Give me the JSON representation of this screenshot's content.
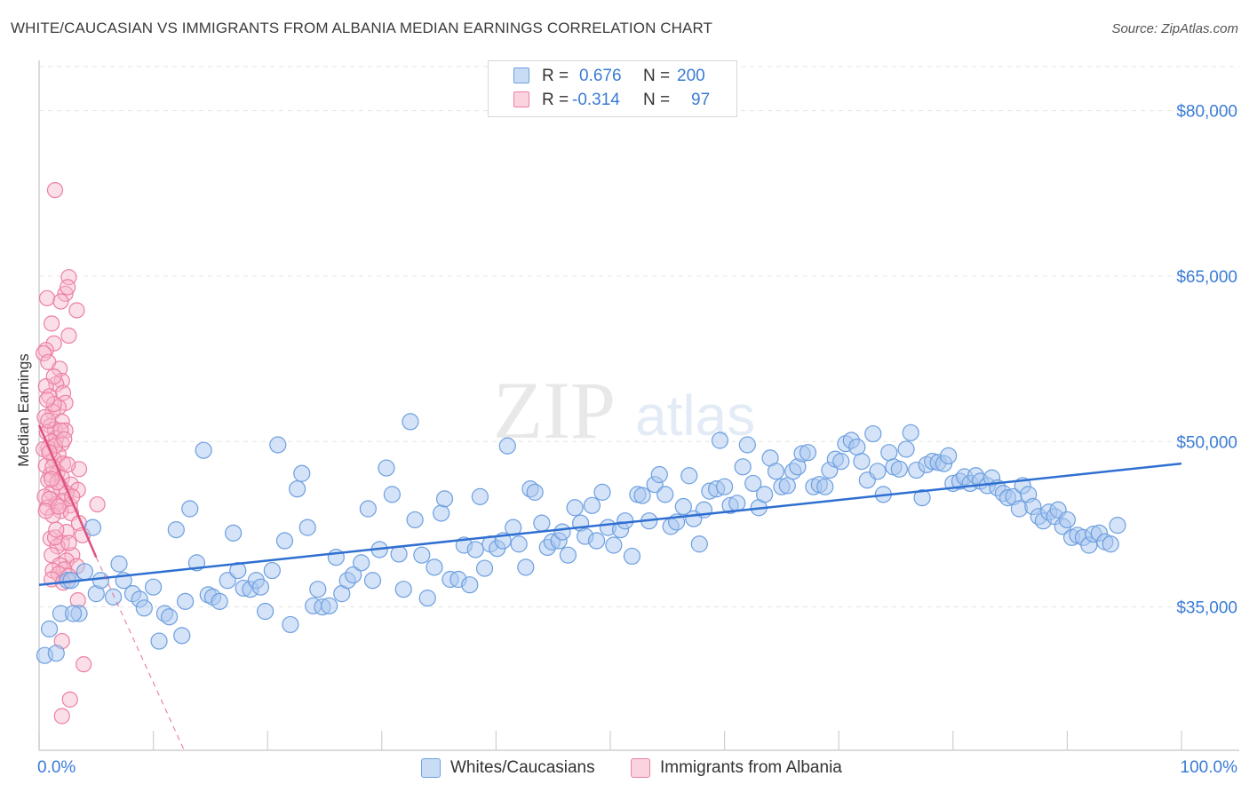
{
  "title": "WHITE/CAUCASIAN VS IMMIGRANTS FROM ALBANIA MEDIAN EARNINGS CORRELATION CHART",
  "source": "Source: ZipAtlas.com",
  "watermark": {
    "zip": "ZIP",
    "atlas": "atlas"
  },
  "legend": {
    "rows": [
      {
        "r_label": "R =",
        "r_value": "0.676",
        "n_label": "N =",
        "n_value": "200",
        "color": "#a9c8f0"
      },
      {
        "r_label": "R =",
        "r_value": "-0.314",
        "n_label": "N =",
        "n_value": "97",
        "color": "#f7b7cb"
      }
    ]
  },
  "bottom_legend": {
    "whites": "Whites/Caucasians",
    "albania": "Immigrants from Albania"
  },
  "colors": {
    "blue_fill": "#a9c8f0",
    "blue_stroke": "#6d9fe0",
    "blue_line": "#2f6fd1",
    "pink_fill": "#f7b7cb",
    "pink_stroke": "#ec7fa2",
    "pink_line": "#e0527f",
    "grid": "#e4e4e4",
    "tick_text": "#3a7bd5"
  },
  "chart_data": {
    "type": "scatter",
    "title": "WHITE/CAUCASIAN VS IMMIGRANTS FROM ALBANIA MEDIAN EARNINGS CORRELATION CHART",
    "xlabel": "",
    "ylabel": "Median Earnings",
    "x_tick_labels": [
      "0.0%",
      "100.0%"
    ],
    "y_ticks": [
      35000,
      50000,
      65000,
      80000
    ],
    "y_tick_labels": [
      "$35,000",
      "$50,000",
      "$65,000",
      "$80,000"
    ],
    "xlim": [
      0,
      100
    ],
    "ylim": [
      22000,
      84000
    ],
    "grid": true,
    "series": [
      {
        "name": "Whites/Caucasians",
        "trend": {
          "x": [
            0,
            100
          ],
          "y": [
            37000,
            48000
          ]
        },
        "points": [
          [
            0.5,
            30600
          ],
          [
            1.5,
            30800
          ],
          [
            0.9,
            33000
          ],
          [
            1.9,
            34400
          ],
          [
            3.5,
            34400
          ],
          [
            3.0,
            34400
          ],
          [
            2.5,
            37400
          ],
          [
            4.0,
            38200
          ],
          [
            4.7,
            42200
          ],
          [
            2.8,
            37400
          ],
          [
            5.0,
            36200
          ],
          [
            5.4,
            37400
          ],
          [
            6.5,
            35900
          ],
          [
            7.0,
            38900
          ],
          [
            7.4,
            37400
          ],
          [
            8.2,
            36200
          ],
          [
            8.8,
            35700
          ],
          [
            9.2,
            34900
          ],
          [
            10.0,
            36800
          ],
          [
            10.5,
            31900
          ],
          [
            11.0,
            34400
          ],
          [
            11.4,
            34100
          ],
          [
            12.0,
            42000
          ],
          [
            12.5,
            32400
          ],
          [
            12.8,
            35500
          ],
          [
            13.2,
            43900
          ],
          [
            13.8,
            39000
          ],
          [
            14.4,
            49200
          ],
          [
            14.8,
            36100
          ],
          [
            15.2,
            35900
          ],
          [
            15.8,
            35500
          ],
          [
            16.5,
            37400
          ],
          [
            17.0,
            41700
          ],
          [
            17.4,
            38300
          ],
          [
            17.9,
            36700
          ],
          [
            18.5,
            36600
          ],
          [
            19.0,
            37400
          ],
          [
            19.4,
            36800
          ],
          [
            19.8,
            34600
          ],
          [
            20.4,
            38300
          ],
          [
            20.9,
            49700
          ],
          [
            21.5,
            41000
          ],
          [
            22.0,
            33400
          ],
          [
            22.6,
            45700
          ],
          [
            23.0,
            47100
          ],
          [
            23.5,
            42200
          ],
          [
            24.0,
            35100
          ],
          [
            24.4,
            36600
          ],
          [
            24.8,
            35000
          ],
          [
            25.4,
            35100
          ],
          [
            26.0,
            39500
          ],
          [
            26.5,
            36200
          ],
          [
            27.0,
            37400
          ],
          [
            27.5,
            37900
          ],
          [
            28.2,
            39000
          ],
          [
            28.8,
            43900
          ],
          [
            29.2,
            37400
          ],
          [
            29.8,
            40200
          ],
          [
            30.4,
            47600
          ],
          [
            30.9,
            45200
          ],
          [
            31.5,
            39800
          ],
          [
            31.9,
            36600
          ],
          [
            32.5,
            51800
          ],
          [
            32.9,
            42900
          ],
          [
            33.5,
            39700
          ],
          [
            34.0,
            35800
          ],
          [
            34.6,
            38600
          ],
          [
            35.2,
            43500
          ],
          [
            35.5,
            44800
          ],
          [
            36.0,
            37500
          ],
          [
            36.7,
            37500
          ],
          [
            37.2,
            40600
          ],
          [
            37.7,
            37000
          ],
          [
            38.2,
            40200
          ],
          [
            38.6,
            45000
          ],
          [
            39.0,
            38500
          ],
          [
            39.5,
            40700
          ],
          [
            40.1,
            40300
          ],
          [
            40.6,
            41000
          ],
          [
            41.0,
            49600
          ],
          [
            41.5,
            42200
          ],
          [
            42.0,
            40700
          ],
          [
            42.6,
            38600
          ],
          [
            43.0,
            45700
          ],
          [
            43.4,
            45400
          ],
          [
            44.0,
            42600
          ],
          [
            44.5,
            40400
          ],
          [
            44.9,
            40900
          ],
          [
            45.5,
            41000
          ],
          [
            45.8,
            41800
          ],
          [
            46.3,
            39700
          ],
          [
            46.9,
            44000
          ],
          [
            47.4,
            42600
          ],
          [
            47.8,
            41400
          ],
          [
            48.4,
            44200
          ],
          [
            48.8,
            41000
          ],
          [
            49.3,
            45400
          ],
          [
            49.8,
            42200
          ],
          [
            50.3,
            40600
          ],
          [
            50.9,
            42000
          ],
          [
            51.3,
            42800
          ],
          [
            51.9,
            39600
          ],
          [
            52.4,
            45200
          ],
          [
            52.8,
            45100
          ],
          [
            53.4,
            42800
          ],
          [
            53.9,
            46100
          ],
          [
            54.3,
            47000
          ],
          [
            54.8,
            45200
          ],
          [
            55.3,
            42300
          ],
          [
            55.8,
            42700
          ],
          [
            56.4,
            44100
          ],
          [
            56.9,
            46900
          ],
          [
            57.3,
            43000
          ],
          [
            57.8,
            40700
          ],
          [
            58.2,
            43800
          ],
          [
            58.7,
            45500
          ],
          [
            59.3,
            45700
          ],
          [
            59.6,
            50100
          ],
          [
            60.0,
            45900
          ],
          [
            60.5,
            44200
          ],
          [
            61.1,
            44400
          ],
          [
            61.6,
            47700
          ],
          [
            62.0,
            49700
          ],
          [
            62.5,
            46200
          ],
          [
            63.0,
            44000
          ],
          [
            63.5,
            45200
          ],
          [
            64.0,
            48500
          ],
          [
            64.5,
            47300
          ],
          [
            65.0,
            45900
          ],
          [
            65.5,
            46000
          ],
          [
            66.0,
            47300
          ],
          [
            66.4,
            47700
          ],
          [
            66.8,
            48900
          ],
          [
            67.3,
            49000
          ],
          [
            67.8,
            45900
          ],
          [
            68.3,
            46100
          ],
          [
            68.8,
            45900
          ],
          [
            69.2,
            47400
          ],
          [
            69.7,
            48400
          ],
          [
            70.2,
            48200
          ],
          [
            70.6,
            49800
          ],
          [
            71.1,
            50100
          ],
          [
            71.6,
            49500
          ],
          [
            72.0,
            48200
          ],
          [
            72.5,
            46500
          ],
          [
            73.0,
            50700
          ],
          [
            73.4,
            47300
          ],
          [
            73.9,
            45200
          ],
          [
            74.4,
            49000
          ],
          [
            74.8,
            47700
          ],
          [
            75.3,
            47500
          ],
          [
            75.9,
            49300
          ],
          [
            76.3,
            50800
          ],
          [
            76.8,
            47400
          ],
          [
            77.3,
            44900
          ],
          [
            77.7,
            47900
          ],
          [
            78.2,
            48200
          ],
          [
            78.7,
            48100
          ],
          [
            79.2,
            48000
          ],
          [
            79.6,
            48700
          ],
          [
            80.0,
            46200
          ],
          [
            80.6,
            46400
          ],
          [
            81.0,
            46800
          ],
          [
            81.5,
            46200
          ],
          [
            82.0,
            46900
          ],
          [
            82.4,
            46400
          ],
          [
            83.0,
            46000
          ],
          [
            83.4,
            46700
          ],
          [
            83.9,
            45800
          ],
          [
            84.4,
            45300
          ],
          [
            84.8,
            44900
          ],
          [
            85.3,
            45000
          ],
          [
            85.8,
            43900
          ],
          [
            86.1,
            46000
          ],
          [
            86.6,
            45200
          ],
          [
            87.0,
            44100
          ],
          [
            87.5,
            43200
          ],
          [
            87.9,
            42800
          ],
          [
            88.4,
            43600
          ],
          [
            88.9,
            43200
          ],
          [
            89.2,
            43800
          ],
          [
            89.6,
            42300
          ],
          [
            90.0,
            42900
          ],
          [
            90.4,
            41300
          ],
          [
            90.9,
            41500
          ],
          [
            91.4,
            41300
          ],
          [
            91.9,
            40600
          ],
          [
            92.3,
            41600
          ],
          [
            92.8,
            41700
          ],
          [
            93.3,
            40900
          ],
          [
            93.8,
            40700
          ],
          [
            94.4,
            42400
          ]
        ]
      },
      {
        "name": "Immigrants from Albania",
        "trend": {
          "x": [
            0,
            5
          ],
          "y": [
            51500,
            39500
          ]
        },
        "trend_dashed_extension": {
          "x": [
            5,
            12.7
          ],
          "y": [
            39500,
            22000
          ]
        },
        "points": [
          [
            1.4,
            72800
          ],
          [
            2.6,
            64900
          ],
          [
            2.3,
            63400
          ],
          [
            2.5,
            64000
          ],
          [
            0.7,
            63000
          ],
          [
            1.9,
            62700
          ],
          [
            3.3,
            61900
          ],
          [
            1.1,
            60700
          ],
          [
            2.6,
            59600
          ],
          [
            1.3,
            58900
          ],
          [
            0.6,
            58300
          ],
          [
            0.4,
            58000
          ],
          [
            0.8,
            57200
          ],
          [
            1.8,
            56600
          ],
          [
            2.0,
            55500
          ],
          [
            1.5,
            55200
          ],
          [
            0.6,
            55000
          ],
          [
            2.1,
            54400
          ],
          [
            0.9,
            54100
          ],
          [
            2.3,
            53500
          ],
          [
            1.7,
            53100
          ],
          [
            1.2,
            52700
          ],
          [
            0.5,
            52200
          ],
          [
            2.0,
            51800
          ],
          [
            1.0,
            51400
          ],
          [
            1.4,
            51100
          ],
          [
            2.3,
            51000
          ],
          [
            0.7,
            50800
          ],
          [
            1.5,
            50300
          ],
          [
            1.1,
            50000
          ],
          [
            2.0,
            49800
          ],
          [
            0.8,
            49400
          ],
          [
            0.4,
            49300
          ],
          [
            1.7,
            48800
          ],
          [
            1.3,
            48400
          ],
          [
            2.1,
            48000
          ],
          [
            0.6,
            47800
          ],
          [
            3.5,
            47500
          ],
          [
            1.6,
            47200
          ],
          [
            1.0,
            47000
          ],
          [
            2.0,
            46700
          ],
          [
            0.8,
            46500
          ],
          [
            2.8,
            46100
          ],
          [
            1.9,
            45800
          ],
          [
            3.4,
            45600
          ],
          [
            1.1,
            45400
          ],
          [
            2.4,
            45300
          ],
          [
            0.5,
            45000
          ],
          [
            2.0,
            44600
          ],
          [
            1.5,
            44300
          ],
          [
            2.7,
            44200
          ],
          [
            0.7,
            44000
          ],
          [
            5.1,
            44300
          ],
          [
            1.9,
            43700
          ],
          [
            2.8,
            43500
          ],
          [
            1.2,
            43300
          ],
          [
            3.5,
            42600
          ],
          [
            2.4,
            41800
          ],
          [
            3.8,
            41500
          ],
          [
            1.0,
            41200
          ],
          [
            2.0,
            40800
          ],
          [
            1.6,
            40500
          ],
          [
            2.9,
            39700
          ],
          [
            1.1,
            39700
          ],
          [
            2.4,
            39200
          ],
          [
            1.8,
            38800
          ],
          [
            3.3,
            38700
          ],
          [
            2.2,
            38400
          ],
          [
            1.2,
            38300
          ],
          [
            1.7,
            38000
          ],
          [
            2.6,
            37800
          ],
          [
            1.1,
            37500
          ],
          [
            2.1,
            37200
          ],
          [
            3.4,
            35600
          ],
          [
            2.0,
            31900
          ],
          [
            3.9,
            29800
          ],
          [
            2.7,
            26600
          ],
          [
            2.0,
            25100
          ],
          [
            1.4,
            41300
          ],
          [
            2.6,
            40800
          ],
          [
            0.9,
            44800
          ],
          [
            1.2,
            47700
          ],
          [
            1.4,
            49600
          ],
          [
            2.9,
            45000
          ],
          [
            0.6,
            43700
          ],
          [
            1.6,
            46300
          ],
          [
            1.9,
            51000
          ],
          [
            1.3,
            53400
          ],
          [
            0.8,
            51900
          ],
          [
            2.5,
            47900
          ],
          [
            1.1,
            46600
          ],
          [
            1.7,
            44100
          ],
          [
            1.5,
            42000
          ],
          [
            0.9,
            49000
          ],
          [
            2.2,
            50200
          ],
          [
            1.3,
            55900
          ],
          [
            0.7,
            53800
          ]
        ]
      }
    ]
  }
}
